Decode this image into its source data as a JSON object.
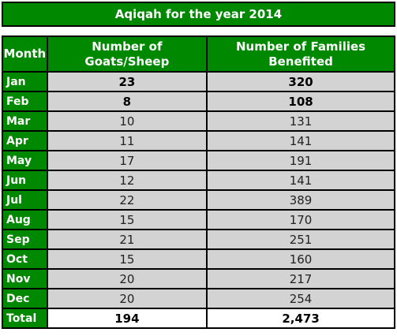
{
  "title": "Aqiqah for the year 2014",
  "headers": {
    "month": "Month",
    "goats": "Number of Goats/Sheep",
    "families": "Number of Families Benefited"
  },
  "rows": [
    {
      "month": "Jan",
      "goats": "23",
      "families": "320"
    },
    {
      "month": "Feb",
      "goats": "8",
      "families": "108"
    },
    {
      "month": "Mar",
      "goats": "10",
      "families": "131"
    },
    {
      "month": "Apr",
      "goats": "11",
      "families": "141"
    },
    {
      "month": "May",
      "goats": "17",
      "families": "191"
    },
    {
      "month": "Jun",
      "goats": "12",
      "families": "141"
    },
    {
      "month": "Jul",
      "goats": "22",
      "families": "389"
    },
    {
      "month": "Aug",
      "goats": "15",
      "families": "170"
    },
    {
      "month": "Sep",
      "goats": "21",
      "families": "251"
    },
    {
      "month": "Oct",
      "goats": "15",
      "families": "160"
    },
    {
      "month": "Nov",
      "goats": "20",
      "families": "217"
    },
    {
      "month": "Dec",
      "goats": "20",
      "families": "254"
    }
  ],
  "total": {
    "label": "Total",
    "goats": "194",
    "families": "2,473"
  },
  "colors": {
    "header_green": "#008800",
    "cell_gray": "#d3d3d3",
    "border": "#000000"
  }
}
